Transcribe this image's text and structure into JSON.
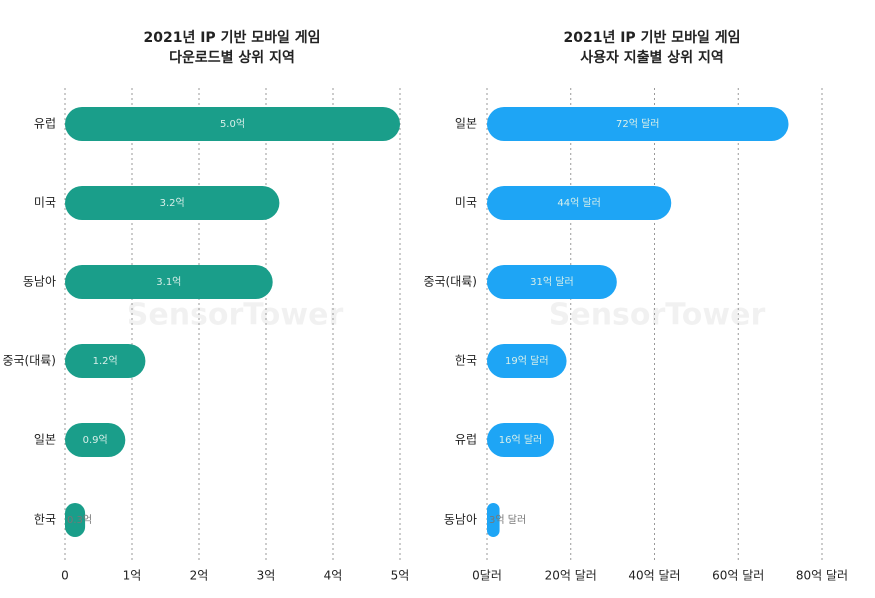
{
  "watermark": "SensorTower",
  "chart_data": [
    {
      "type": "barh",
      "title": "2021년 IP 기반 모바일 게임",
      "subtitle": "다운로드별 상위 지역",
      "categories": [
        "유럽",
        "미국",
        "동남아",
        "중국(대륙)",
        "일본",
        "한국"
      ],
      "values": [
        5.0,
        3.2,
        3.1,
        1.2,
        0.9,
        0.3
      ],
      "value_labels": [
        "5.0억",
        "3.2억",
        "3.1억",
        "1.2억",
        "0.9억",
        "0.3억"
      ],
      "color": "#1a9e8a",
      "xlim": [
        0,
        5
      ],
      "xticks": [
        0,
        {
          "value": 1,
          "label": "1억"
        },
        {
          "value": 2,
          "label": "2억"
        },
        {
          "value": 3,
          "label": "3억"
        },
        {
          "value": 4,
          "label": "4억"
        },
        {
          "value": 5,
          "label": "5억"
        }
      ],
      "grid": true
    },
    {
      "type": "barh",
      "title": "2021년 IP 기반 모바일 게임",
      "subtitle": "사용자 지출별 상위 지역",
      "categories": [
        "일본",
        "미국",
        "중국(대륙)",
        "한국",
        "유럽",
        "동남아"
      ],
      "values": [
        72,
        44,
        31,
        19,
        16,
        3
      ],
      "value_labels": [
        "72억 달러",
        "44억 달러",
        "31억 달러",
        "19억 달러",
        "16억 달러",
        "3억 달러"
      ],
      "color": "#1ea5f5",
      "xlim": [
        0,
        80
      ],
      "xticks": [
        {
          "value": 0,
          "label": "0달러"
        },
        {
          "value": 20,
          "label": "20억 달러"
        },
        {
          "value": 40,
          "label": "40억 달러"
        },
        {
          "value": 60,
          "label": "60억 달러"
        },
        {
          "value": 80,
          "label": "80억 달러"
        }
      ],
      "grid": true
    }
  ]
}
